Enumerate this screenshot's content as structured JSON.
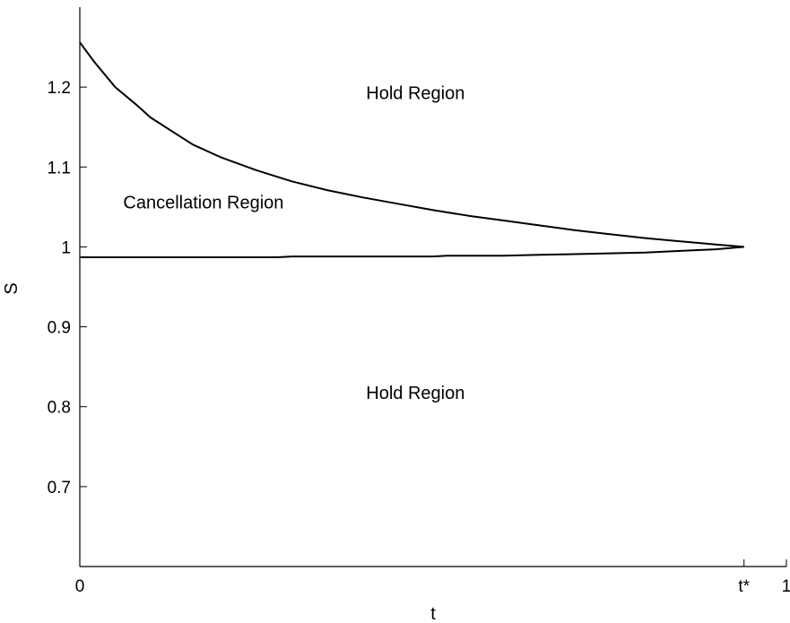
{
  "chart_data": {
    "type": "line",
    "title": "",
    "xlabel": "t",
    "ylabel": "S",
    "xlim": [
      0,
      1
    ],
    "ylim": [
      0.6,
      1.3
    ],
    "grid": false,
    "x_ticks": [
      {
        "value": 0,
        "label": "0"
      },
      {
        "value": 0.94,
        "label": "t*"
      },
      {
        "value": 1,
        "label": "1"
      }
    ],
    "y_ticks": [
      {
        "value": 0.7,
        "label": "0.7"
      },
      {
        "value": 0.8,
        "label": "0.8"
      },
      {
        "value": 0.9,
        "label": "0.9"
      },
      {
        "value": 1.0,
        "label": "1"
      },
      {
        "value": 1.1,
        "label": "1.1"
      },
      {
        "value": 1.2,
        "label": "1.2"
      }
    ],
    "series": [
      {
        "x": [
          0,
          0.02,
          0.05,
          0.08,
          0.1,
          0.13,
          0.16,
          0.2,
          0.25,
          0.3,
          0.35,
          0.4,
          0.45,
          0.5,
          0.55,
          0.6,
          0.65,
          0.7,
          0.75,
          0.8,
          0.85,
          0.9,
          0.94
        ],
        "y": [
          1.256,
          1.232,
          1.2,
          1.178,
          1.162,
          1.145,
          1.128,
          1.112,
          1.096,
          1.082,
          1.071,
          1.062,
          1.054,
          1.046,
          1.039,
          1.033,
          1.027,
          1.021,
          1.016,
          1.011,
          1.007,
          1.003,
          1.0
        ]
      },
      {
        "x": [
          0,
          0.1,
          0.2,
          0.28,
          0.3,
          0.4,
          0.5,
          0.52,
          0.6,
          0.65,
          0.7,
          0.75,
          0.8,
          0.85,
          0.9,
          0.94
        ],
        "y": [
          0.987,
          0.987,
          0.987,
          0.987,
          0.988,
          0.988,
          0.988,
          0.989,
          0.989,
          0.99,
          0.991,
          0.992,
          0.993,
          0.995,
          0.997,
          1.0
        ]
      }
    ],
    "annotations": [
      {
        "text": "Hold Region",
        "x": 0.475,
        "y": 1.185
      },
      {
        "text": "Cancellation Region",
        "x": 0.175,
        "y": 1.048
      },
      {
        "text": "Hold Region",
        "x": 0.475,
        "y": 0.81
      }
    ]
  }
}
